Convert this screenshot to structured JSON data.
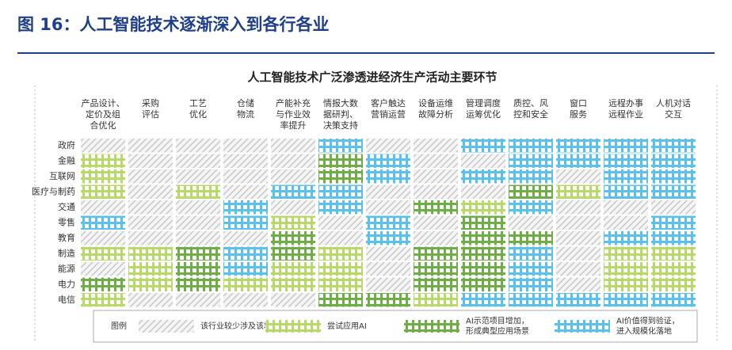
{
  "chart_data": {
    "type": "matrix",
    "figure_title": "图 16：人工智能技术逐渐深入到各行各业",
    "title": "人工智能技术广泛渗透进经济生产活动主要环节",
    "x": [
      [
        "产品设计、",
        "定价及组",
        "合优化"
      ],
      [
        "采购",
        "评估"
      ],
      [
        "工艺",
        "优化"
      ],
      [
        "仓储",
        "物流"
      ],
      [
        "产能补充",
        "与作业效",
        "率提升"
      ],
      [
        "情报大数",
        "据研判、",
        "决策支持"
      ],
      [
        "客户触达",
        "营销运营"
      ],
      [
        "设备运维",
        "故障分析"
      ],
      [
        "管理调度",
        "运筹优化"
      ],
      [
        "质控、风",
        "控和安全"
      ],
      [
        "窗口",
        "服务"
      ],
      [
        "远程办事",
        "远程作业"
      ],
      [
        "人机对话",
        "交互"
      ]
    ],
    "y": [
      "政府",
      "金融",
      "互联网",
      "医疗与制药",
      "交通",
      "零售",
      "教育",
      "制造",
      "能源",
      "电力",
      "电信"
    ],
    "values": [
      [
        0,
        0,
        0,
        0,
        0,
        3,
        0,
        0,
        3,
        3,
        3,
        3,
        3
      ],
      [
        1,
        0,
        0,
        0,
        0,
        2,
        3,
        0,
        0,
        3,
        3,
        3,
        3
      ],
      [
        1,
        0,
        0,
        0,
        0,
        2,
        3,
        0,
        3,
        3,
        0,
        3,
        3
      ],
      [
        1,
        0,
        1,
        0,
        3,
        3,
        0,
        0,
        0,
        2,
        1,
        3,
        3
      ],
      [
        0,
        0,
        0,
        3,
        0,
        3,
        0,
        2,
        1,
        3,
        0,
        0,
        0
      ],
      [
        3,
        0,
        0,
        3,
        1,
        0,
        3,
        0,
        2,
        0,
        0,
        0,
        3
      ],
      [
        0,
        0,
        0,
        0,
        2,
        0,
        3,
        0,
        2,
        2,
        0,
        3,
        3
      ],
      [
        1,
        1,
        2,
        3,
        2,
        1,
        0,
        2,
        2,
        3,
        0,
        1,
        1
      ],
      [
        0,
        1,
        2,
        3,
        1,
        1,
        0,
        2,
        2,
        3,
        0,
        1,
        1
      ],
      [
        2,
        1,
        2,
        1,
        1,
        1,
        0,
        2,
        2,
        3,
        0,
        1,
        1
      ],
      [
        1,
        0,
        0,
        0,
        0,
        2,
        2,
        1,
        3,
        3,
        3,
        3,
        3
      ]
    ],
    "legend_title": "图例",
    "series": [
      {
        "name": [
          "该行业较少涉及该场景"
        ],
        "color": "#b8b8b8"
      },
      {
        "name": [
          "尝试应用AI"
        ],
        "color": "#b9d96a"
      },
      {
        "name": [
          "AI示范项目增加，",
          "形成典型应用场景"
        ],
        "color": "#6fae46"
      },
      {
        "name": [
          "AI价值得到验证，",
          "进入规模化落地"
        ],
        "color": "#5bc0ea"
      }
    ]
  }
}
